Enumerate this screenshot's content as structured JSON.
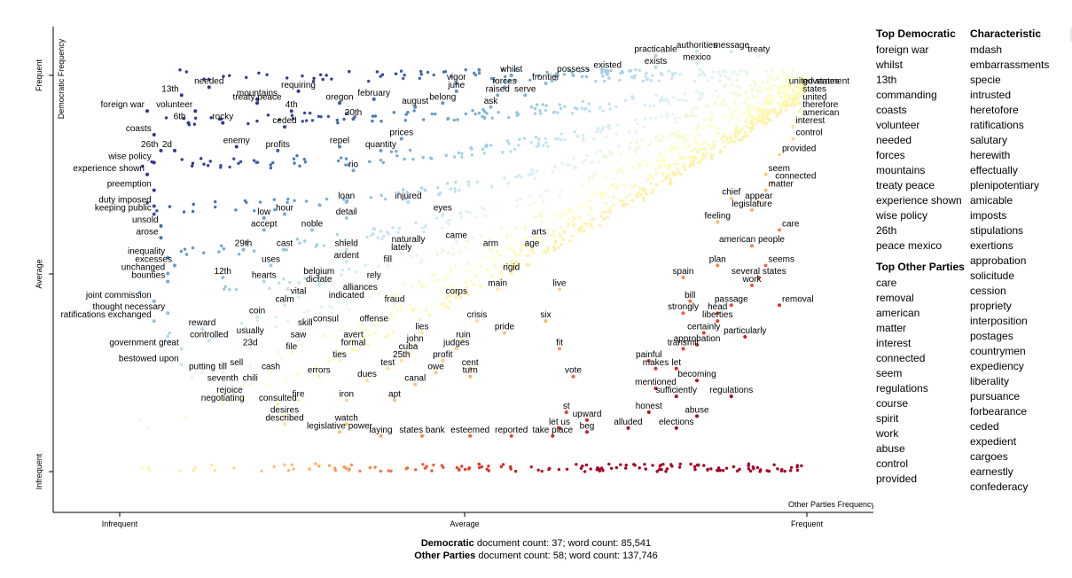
{
  "chart_data": {
    "type": "scatter",
    "xlabel": "Other Parties Frequency",
    "ylabel": "Democratic Frequency",
    "x_ticks": [
      "Infrequent",
      "Average",
      "Frequent"
    ],
    "y_ticks": [
      "Infrequent",
      "Average",
      "Frequent"
    ],
    "xlim": [
      0,
      1
    ],
    "ylim": [
      0,
      1
    ],
    "grid": false,
    "color_scale": {
      "democratic": "#313695",
      "neutral": "#ffffbf",
      "other": "#a50026"
    },
    "labeled_points": [
      {
        "term": "united states",
        "x": 0.97,
        "y": 0.97
      },
      {
        "term": "government",
        "x": 0.99,
        "y": 0.97
      },
      {
        "term": "states",
        "x": 0.99,
        "y": 0.95
      },
      {
        "term": "united",
        "x": 0.99,
        "y": 0.93
      },
      {
        "term": "therefore",
        "x": 0.99,
        "y": 0.91
      },
      {
        "term": "american",
        "x": 0.99,
        "y": 0.89
      },
      {
        "term": "interest",
        "x": 0.98,
        "y": 0.87
      },
      {
        "term": "control",
        "x": 0.98,
        "y": 0.84
      },
      {
        "term": "provided",
        "x": 0.96,
        "y": 0.8
      },
      {
        "term": "seem",
        "x": 0.94,
        "y": 0.75
      },
      {
        "term": "connected",
        "x": 0.95,
        "y": 0.73
      },
      {
        "term": "matter",
        "x": 0.94,
        "y": 0.71
      },
      {
        "term": "chief",
        "x": 0.89,
        "y": 0.69
      },
      {
        "term": "appear",
        "x": 0.93,
        "y": 0.68
      },
      {
        "term": "legislature",
        "x": 0.92,
        "y": 0.66
      },
      {
        "term": "feeling",
        "x": 0.87,
        "y": 0.63
      },
      {
        "term": "care",
        "x": 0.96,
        "y": 0.61
      },
      {
        "term": "american people",
        "x": 0.92,
        "y": 0.57
      },
      {
        "term": "seems",
        "x": 0.94,
        "y": 0.52
      },
      {
        "term": "plan",
        "x": 0.87,
        "y": 0.52
      },
      {
        "term": "spain",
        "x": 0.82,
        "y": 0.49
      },
      {
        "term": "several states",
        "x": 0.93,
        "y": 0.49
      },
      {
        "term": "work",
        "x": 0.92,
        "y": 0.47
      },
      {
        "term": "bill",
        "x": 0.83,
        "y": 0.43
      },
      {
        "term": "passage",
        "x": 0.89,
        "y": 0.42
      },
      {
        "term": "removal",
        "x": 0.96,
        "y": 0.42
      },
      {
        "term": "strongly",
        "x": 0.82,
        "y": 0.4
      },
      {
        "term": "head",
        "x": 0.87,
        "y": 0.4
      },
      {
        "term": "liberties",
        "x": 0.87,
        "y": 0.38
      },
      {
        "term": "certainly",
        "x": 0.85,
        "y": 0.35
      },
      {
        "term": "particularly",
        "x": 0.91,
        "y": 0.34
      },
      {
        "term": "approbation",
        "x": 0.84,
        "y": 0.32
      },
      {
        "term": "transmit",
        "x": 0.82,
        "y": 0.31
      },
      {
        "term": "painful",
        "x": 0.77,
        "y": 0.28
      },
      {
        "term": "let",
        "x": 0.81,
        "y": 0.26
      },
      {
        "term": "makes",
        "x": 0.78,
        "y": 0.26
      },
      {
        "term": "becoming",
        "x": 0.84,
        "y": 0.23
      },
      {
        "term": "mentioned",
        "x": 0.78,
        "y": 0.21
      },
      {
        "term": "sufficiently",
        "x": 0.81,
        "y": 0.19
      },
      {
        "term": "regulations",
        "x": 0.89,
        "y": 0.19
      },
      {
        "term": "honest",
        "x": 0.77,
        "y": 0.15
      },
      {
        "term": "abuse",
        "x": 0.84,
        "y": 0.14
      },
      {
        "term": "elections",
        "x": 0.81,
        "y": 0.11
      },
      {
        "term": "alluded",
        "x": 0.74,
        "y": 0.11
      },
      {
        "term": "upward",
        "x": 0.68,
        "y": 0.13
      },
      {
        "term": "beg",
        "x": 0.68,
        "y": 0.1
      },
      {
        "term": "st",
        "x": 0.65,
        "y": 0.15
      },
      {
        "term": "let us",
        "x": 0.64,
        "y": 0.11
      },
      {
        "term": "take place",
        "x": 0.63,
        "y": 0.09
      },
      {
        "term": "reported",
        "x": 0.57,
        "y": 0.09
      },
      {
        "term": "esteemed",
        "x": 0.51,
        "y": 0.09
      },
      {
        "term": "states bank",
        "x": 0.44,
        "y": 0.09
      },
      {
        "term": "laying",
        "x": 0.38,
        "y": 0.09
      },
      {
        "term": "legislative power",
        "x": 0.32,
        "y": 0.1
      },
      {
        "term": "watch",
        "x": 0.33,
        "y": 0.12
      },
      {
        "term": "described",
        "x": 0.24,
        "y": 0.12
      },
      {
        "term": "desires",
        "x": 0.24,
        "y": 0.14
      },
      {
        "term": "consulted",
        "x": 0.23,
        "y": 0.17
      },
      {
        "term": "fire",
        "x": 0.26,
        "y": 0.18
      },
      {
        "term": "negotiating",
        "x": 0.15,
        "y": 0.17
      },
      {
        "term": "rejoice",
        "x": 0.16,
        "y": 0.19
      },
      {
        "term": "seventh",
        "x": 0.15,
        "y": 0.22
      },
      {
        "term": "chili",
        "x": 0.19,
        "y": 0.22
      },
      {
        "term": "cash",
        "x": 0.22,
        "y": 0.25
      },
      {
        "term": "till",
        "x": 0.15,
        "y": 0.25
      },
      {
        "term": "sell",
        "x": 0.17,
        "y": 0.26
      },
      {
        "term": "putting",
        "x": 0.12,
        "y": 0.25
      },
      {
        "term": "bestowed upon",
        "x": 0.09,
        "y": 0.27
      },
      {
        "term": "government great",
        "x": 0.09,
        "y": 0.31
      },
      {
        "term": "23d",
        "x": 0.19,
        "y": 0.31
      },
      {
        "term": "controlled",
        "x": 0.13,
        "y": 0.33
      },
      {
        "term": "usually",
        "x": 0.19,
        "y": 0.34
      },
      {
        "term": "reward",
        "x": 0.12,
        "y": 0.36
      },
      {
        "term": "ratifications exchanged",
        "x": 0.05,
        "y": 0.38
      },
      {
        "term": "thought necessary",
        "x": 0.07,
        "y": 0.4
      },
      {
        "term": "joint commission",
        "x": 0.05,
        "y": 0.43
      },
      {
        "term": "bounties",
        "x": 0.07,
        "y": 0.48
      },
      {
        "term": "unchanged",
        "x": 0.07,
        "y": 0.5
      },
      {
        "term": "excesses",
        "x": 0.08,
        "y": 0.52
      },
      {
        "term": "inequality",
        "x": 0.07,
        "y": 0.54
      },
      {
        "term": "arose",
        "x": 0.06,
        "y": 0.59
      },
      {
        "term": "unsold",
        "x": 0.06,
        "y": 0.62
      },
      {
        "term": "keeping public",
        "x": 0.05,
        "y": 0.65
      },
      {
        "term": "duty imposed",
        "x": 0.05,
        "y": 0.67
      },
      {
        "term": "preemption",
        "x": 0.05,
        "y": 0.71
      },
      {
        "term": "experience shown",
        "x": 0.04,
        "y": 0.75
      },
      {
        "term": "wise policy",
        "x": 0.05,
        "y": 0.78
      },
      {
        "term": "26th",
        "x": 0.06,
        "y": 0.81
      },
      {
        "term": "2d",
        "x": 0.08,
        "y": 0.81
      },
      {
        "term": "coasts",
        "x": 0.05,
        "y": 0.85
      },
      {
        "term": "6th",
        "x": 0.1,
        "y": 0.88
      },
      {
        "term": "foreign war",
        "x": 0.04,
        "y": 0.91
      },
      {
        "term": "volunteer",
        "x": 0.11,
        "y": 0.91
      },
      {
        "term": "rocky",
        "x": 0.15,
        "y": 0.88
      },
      {
        "term": "13th",
        "x": 0.09,
        "y": 0.95
      },
      {
        "term": "needed",
        "x": 0.13,
        "y": 0.97
      },
      {
        "term": "mountains",
        "x": 0.2,
        "y": 0.94
      },
      {
        "term": "treaty peace",
        "x": 0.2,
        "y": 0.93
      },
      {
        "term": "requiring",
        "x": 0.26,
        "y": 0.96
      },
      {
        "term": "4th",
        "x": 0.25,
        "y": 0.91
      },
      {
        "term": "ceded",
        "x": 0.24,
        "y": 0.87
      },
      {
        "term": "oregon",
        "x": 0.32,
        "y": 0.93
      },
      {
        "term": "february",
        "x": 0.37,
        "y": 0.94
      },
      {
        "term": "30th",
        "x": 0.34,
        "y": 0.89
      },
      {
        "term": "august",
        "x": 0.43,
        "y": 0.92
      },
      {
        "term": "vigor",
        "x": 0.49,
        "y": 0.98
      },
      {
        "term": "june",
        "x": 0.49,
        "y": 0.96
      },
      {
        "term": "belong",
        "x": 0.47,
        "y": 0.93
      },
      {
        "term": "enemy",
        "x": 0.17,
        "y": 0.82
      },
      {
        "term": "profits",
        "x": 0.23,
        "y": 0.81
      },
      {
        "term": "repel",
        "x": 0.32,
        "y": 0.82
      },
      {
        "term": "quantity",
        "x": 0.38,
        "y": 0.81
      },
      {
        "term": "prices",
        "x": 0.41,
        "y": 0.84
      },
      {
        "term": "rio",
        "x": 0.34,
        "y": 0.76
      },
      {
        "term": "loan",
        "x": 0.33,
        "y": 0.68
      },
      {
        "term": "detail",
        "x": 0.33,
        "y": 0.64
      },
      {
        "term": "injured",
        "x": 0.42,
        "y": 0.68
      },
      {
        "term": "eyes",
        "x": 0.47,
        "y": 0.65
      },
      {
        "term": "hour",
        "x": 0.24,
        "y": 0.65
      },
      {
        "term": "low",
        "x": 0.21,
        "y": 0.64
      },
      {
        "term": "accept",
        "x": 0.21,
        "y": 0.61
      },
      {
        "term": "noble",
        "x": 0.28,
        "y": 0.61
      },
      {
        "term": "29th",
        "x": 0.18,
        "y": 0.56
      },
      {
        "term": "cast",
        "x": 0.24,
        "y": 0.56
      },
      {
        "term": "uses",
        "x": 0.22,
        "y": 0.52
      },
      {
        "term": "12th",
        "x": 0.15,
        "y": 0.49
      },
      {
        "term": "hearts",
        "x": 0.21,
        "y": 0.48
      },
      {
        "term": "shield",
        "x": 0.33,
        "y": 0.56
      },
      {
        "term": "ardent",
        "x": 0.33,
        "y": 0.53
      },
      {
        "term": "naturally",
        "x": 0.42,
        "y": 0.57
      },
      {
        "term": "lately",
        "x": 0.41,
        "y": 0.55
      },
      {
        "term": "fill",
        "x": 0.39,
        "y": 0.52
      },
      {
        "term": "came",
        "x": 0.49,
        "y": 0.58
      },
      {
        "term": "arts",
        "x": 0.61,
        "y": 0.59
      },
      {
        "term": "arm",
        "x": 0.54,
        "y": 0.56
      },
      {
        "term": "age",
        "x": 0.6,
        "y": 0.56
      },
      {
        "term": "rigid",
        "x": 0.57,
        "y": 0.5
      },
      {
        "term": "belgium",
        "x": 0.29,
        "y": 0.49
      },
      {
        "term": "dictate",
        "x": 0.29,
        "y": 0.47
      },
      {
        "term": "rely",
        "x": 0.37,
        "y": 0.48
      },
      {
        "term": "alliances",
        "x": 0.35,
        "y": 0.45
      },
      {
        "term": "indicated",
        "x": 0.33,
        "y": 0.43
      },
      {
        "term": "vital",
        "x": 0.26,
        "y": 0.44
      },
      {
        "term": "calm",
        "x": 0.24,
        "y": 0.42
      },
      {
        "term": "main",
        "x": 0.55,
        "y": 0.46
      },
      {
        "term": "live",
        "x": 0.64,
        "y": 0.46
      },
      {
        "term": "corps",
        "x": 0.49,
        "y": 0.44
      },
      {
        "term": "fraud",
        "x": 0.4,
        "y": 0.42
      },
      {
        "term": "coin",
        "x": 0.2,
        "y": 0.39
      },
      {
        "term": "skill",
        "x": 0.27,
        "y": 0.36
      },
      {
        "term": "consul",
        "x": 0.3,
        "y": 0.37
      },
      {
        "term": "offense",
        "x": 0.37,
        "y": 0.37
      },
      {
        "term": "crisis",
        "x": 0.52,
        "y": 0.38
      },
      {
        "term": "six",
        "x": 0.62,
        "y": 0.38
      },
      {
        "term": "lies",
        "x": 0.44,
        "y": 0.35
      },
      {
        "term": "pride",
        "x": 0.56,
        "y": 0.35
      },
      {
        "term": "saw",
        "x": 0.26,
        "y": 0.33
      },
      {
        "term": "avert",
        "x": 0.34,
        "y": 0.33
      },
      {
        "term": "formal",
        "x": 0.34,
        "y": 0.31
      },
      {
        "term": "john",
        "x": 0.43,
        "y": 0.32
      },
      {
        "term": "cuba",
        "x": 0.42,
        "y": 0.3
      },
      {
        "term": "ruin",
        "x": 0.5,
        "y": 0.33
      },
      {
        "term": "judges",
        "x": 0.49,
        "y": 0.31
      },
      {
        "term": "fit",
        "x": 0.64,
        "y": 0.31
      },
      {
        "term": "file",
        "x": 0.25,
        "y": 0.3
      },
      {
        "term": "ties",
        "x": 0.32,
        "y": 0.28
      },
      {
        "term": "25th",
        "x": 0.41,
        "y": 0.28
      },
      {
        "term": "profit",
        "x": 0.47,
        "y": 0.28
      },
      {
        "term": "test",
        "x": 0.39,
        "y": 0.26
      },
      {
        "term": "cent",
        "x": 0.51,
        "y": 0.26
      },
      {
        "term": "owe",
        "x": 0.46,
        "y": 0.25
      },
      {
        "term": "turn",
        "x": 0.51,
        "y": 0.24
      },
      {
        "term": "vote",
        "x": 0.66,
        "y": 0.24
      },
      {
        "term": "errors",
        "x": 0.29,
        "y": 0.24
      },
      {
        "term": "dues",
        "x": 0.36,
        "y": 0.23
      },
      {
        "term": "canal",
        "x": 0.43,
        "y": 0.22
      },
      {
        "term": "iron",
        "x": 0.33,
        "y": 0.18
      },
      {
        "term": "apt",
        "x": 0.4,
        "y": 0.18
      },
      {
        "term": "whilst",
        "x": 0.57,
        "y": 1.0
      },
      {
        "term": "forces",
        "x": 0.56,
        "y": 0.97
      },
      {
        "term": "frontier",
        "x": 0.62,
        "y": 0.98
      },
      {
        "term": "possess",
        "x": 0.66,
        "y": 1.0
      },
      {
        "term": "raised",
        "x": 0.55,
        "y": 0.95
      },
      {
        "term": "serve",
        "x": 0.59,
        "y": 0.95
      },
      {
        "term": "ask",
        "x": 0.54,
        "y": 0.92
      },
      {
        "term": "existed",
        "x": 0.71,
        "y": 1.01
      },
      {
        "term": "practicable",
        "x": 0.78,
        "y": 1.05
      },
      {
        "term": "exists",
        "x": 0.78,
        "y": 1.02
      },
      {
        "term": "authorities",
        "x": 0.84,
        "y": 1.06
      },
      {
        "term": "mexico",
        "x": 0.84,
        "y": 1.03
      },
      {
        "term": "message",
        "x": 0.89,
        "y": 1.06
      },
      {
        "term": "treaty",
        "x": 0.93,
        "y": 1.05
      }
    ],
    "background_points": 1500
  },
  "right_panel": {
    "top_democratic_title": "Top Democratic",
    "top_democratic": [
      "foreign war",
      "whilst",
      "13th",
      "commanding",
      "coasts",
      "volunteer",
      "needed",
      "forces",
      "mountains",
      "treaty peace",
      "experience shown",
      "wise policy",
      "26th",
      "peace mexico"
    ],
    "top_other_title": "Top Other Parties",
    "top_other": [
      "care",
      "removal",
      "american",
      "matter",
      "interest",
      "connected",
      "seem",
      "regulations",
      "course",
      "spirit",
      "work",
      "abuse",
      "control",
      "provided"
    ],
    "characteristic_title": "Characteristic",
    "characteristic": [
      "mdash",
      "embarrassments",
      "specie",
      "intrusted",
      "heretofore",
      "ratifications",
      "salutary",
      "herewith",
      "effectually",
      "plenipotentiary",
      "amicable",
      "imposts",
      "stipulations",
      "exertions",
      "approbation",
      "solicitude",
      "cession",
      "propriety",
      "interposition",
      "postages",
      "countrymen",
      "expediency",
      "liberality",
      "pursuance",
      "forbearance",
      "ceded",
      "expedient",
      "cargoes",
      "earnestly",
      "confederacy"
    ]
  },
  "footer": {
    "dem_name": "Democratic",
    "dem_counts": " document count: 37; word count: 85,541",
    "other_name": "Other Parties",
    "other_counts": " document count: 58; word count: 137,746"
  }
}
